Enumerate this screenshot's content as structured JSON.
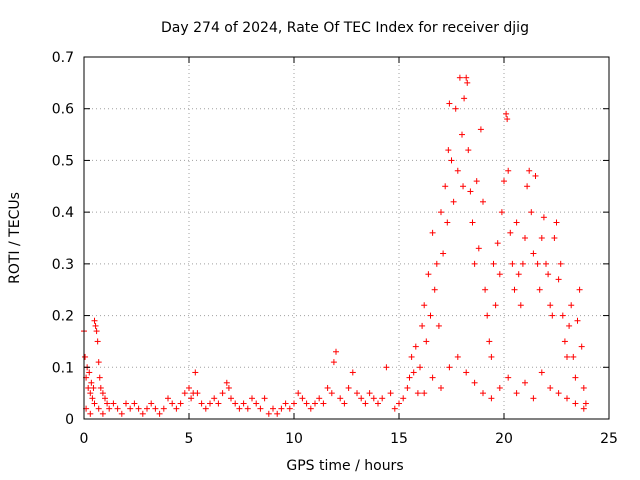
{
  "chart_data": {
    "type": "scatter",
    "title": "Day 274 of 2024, Rate Of TEC Index for receiver djig",
    "xlabel": "GPS time / hours",
    "ylabel": "ROTI / TECUs",
    "xlim": [
      0,
      25
    ],
    "ylim": [
      0,
      0.7
    ],
    "x_ticks": [
      0,
      5,
      10,
      15,
      20,
      25
    ],
    "x_tick_labels": [
      "0",
      "5",
      "10",
      "15",
      "20",
      "25"
    ],
    "y_ticks": [
      0,
      0.1,
      0.2,
      0.3,
      0.4,
      0.5,
      0.6,
      0.7
    ],
    "y_tick_labels": [
      "0",
      "0.1",
      "0.2",
      "0.3",
      "0.4",
      "0.5",
      "0.6",
      "0.7"
    ],
    "grid": true,
    "marker": "+",
    "series": [
      {
        "name": "ROTI",
        "color": "#ff0000",
        "points": [
          [
            0.0,
            0.17
          ],
          [
            0.05,
            0.12
          ],
          [
            0.1,
            0.08
          ],
          [
            0.15,
            0.1
          ],
          [
            0.2,
            0.06
          ],
          [
            0.25,
            0.09
          ],
          [
            0.3,
            0.05
          ],
          [
            0.35,
            0.07
          ],
          [
            0.4,
            0.04
          ],
          [
            0.45,
            0.06
          ],
          [
            0.5,
            0.19
          ],
          [
            0.55,
            0.18
          ],
          [
            0.6,
            0.17
          ],
          [
            0.65,
            0.15
          ],
          [
            0.7,
            0.11
          ],
          [
            0.75,
            0.08
          ],
          [
            0.8,
            0.06
          ],
          [
            0.9,
            0.05
          ],
          [
            1.0,
            0.04
          ],
          [
            1.1,
            0.03
          ],
          [
            0.1,
            0.02
          ],
          [
            0.3,
            0.01
          ],
          [
            0.5,
            0.03
          ],
          [
            0.7,
            0.02
          ],
          [
            0.9,
            0.01
          ],
          [
            1.2,
            0.02
          ],
          [
            1.4,
            0.03
          ],
          [
            1.6,
            0.02
          ],
          [
            1.8,
            0.01
          ],
          [
            2.0,
            0.03
          ],
          [
            2.2,
            0.02
          ],
          [
            2.4,
            0.03
          ],
          [
            2.6,
            0.02
          ],
          [
            2.8,
            0.01
          ],
          [
            3.0,
            0.02
          ],
          [
            3.2,
            0.03
          ],
          [
            3.4,
            0.02
          ],
          [
            3.6,
            0.01
          ],
          [
            3.8,
            0.02
          ],
          [
            4.0,
            0.04
          ],
          [
            4.2,
            0.03
          ],
          [
            4.4,
            0.02
          ],
          [
            4.6,
            0.03
          ],
          [
            4.8,
            0.05
          ],
          [
            5.0,
            0.06
          ],
          [
            5.1,
            0.04
          ],
          [
            5.2,
            0.05
          ],
          [
            5.3,
            0.09
          ],
          [
            5.4,
            0.05
          ],
          [
            5.6,
            0.03
          ],
          [
            5.8,
            0.02
          ],
          [
            6.0,
            0.03
          ],
          [
            6.2,
            0.04
          ],
          [
            6.4,
            0.03
          ],
          [
            6.6,
            0.05
          ],
          [
            6.8,
            0.07
          ],
          [
            6.9,
            0.06
          ],
          [
            7.0,
            0.04
          ],
          [
            7.2,
            0.03
          ],
          [
            7.4,
            0.02
          ],
          [
            7.6,
            0.03
          ],
          [
            7.8,
            0.02
          ],
          [
            8.0,
            0.04
          ],
          [
            8.2,
            0.03
          ],
          [
            8.4,
            0.02
          ],
          [
            8.6,
            0.04
          ],
          [
            8.8,
            0.01
          ],
          [
            9.0,
            0.02
          ],
          [
            9.2,
            0.01
          ],
          [
            9.4,
            0.02
          ],
          [
            9.6,
            0.03
          ],
          [
            9.8,
            0.02
          ],
          [
            10.0,
            0.03
          ],
          [
            10.2,
            0.05
          ],
          [
            10.4,
            0.04
          ],
          [
            10.6,
            0.03
          ],
          [
            10.8,
            0.02
          ],
          [
            11.0,
            0.03
          ],
          [
            11.2,
            0.04
          ],
          [
            11.4,
            0.03
          ],
          [
            11.6,
            0.06
          ],
          [
            11.8,
            0.05
          ],
          [
            11.9,
            0.11
          ],
          [
            12.0,
            0.13
          ],
          [
            12.2,
            0.04
          ],
          [
            12.4,
            0.03
          ],
          [
            12.6,
            0.06
          ],
          [
            12.8,
            0.09
          ],
          [
            13.0,
            0.05
          ],
          [
            13.2,
            0.04
          ],
          [
            13.4,
            0.03
          ],
          [
            13.6,
            0.05
          ],
          [
            13.8,
            0.04
          ],
          [
            14.0,
            0.03
          ],
          [
            14.2,
            0.04
          ],
          [
            14.4,
            0.1
          ],
          [
            14.6,
            0.05
          ],
          [
            14.8,
            0.02
          ],
          [
            15.0,
            0.03
          ],
          [
            15.2,
            0.04
          ],
          [
            15.4,
            0.06
          ],
          [
            15.5,
            0.08
          ],
          [
            15.6,
            0.12
          ],
          [
            15.7,
            0.09
          ],
          [
            15.8,
            0.14
          ],
          [
            15.9,
            0.05
          ],
          [
            16.0,
            0.1
          ],
          [
            16.1,
            0.18
          ],
          [
            16.2,
            0.22
          ],
          [
            16.3,
            0.15
          ],
          [
            16.4,
            0.28
          ],
          [
            16.5,
            0.2
          ],
          [
            16.6,
            0.36
          ],
          [
            16.7,
            0.25
          ],
          [
            16.8,
            0.3
          ],
          [
            16.9,
            0.18
          ],
          [
            17.0,
            0.4
          ],
          [
            17.1,
            0.32
          ],
          [
            17.2,
            0.45
          ],
          [
            17.3,
            0.38
          ],
          [
            17.35,
            0.52
          ],
          [
            17.4,
            0.61
          ],
          [
            17.5,
            0.5
          ],
          [
            17.6,
            0.42
          ],
          [
            17.7,
            0.6
          ],
          [
            17.8,
            0.48
          ],
          [
            17.9,
            0.66
          ],
          [
            18.0,
            0.55
          ],
          [
            18.05,
            0.45
          ],
          [
            18.1,
            0.62
          ],
          [
            18.2,
            0.66
          ],
          [
            18.25,
            0.65
          ],
          [
            18.3,
            0.52
          ],
          [
            18.4,
            0.44
          ],
          [
            18.5,
            0.38
          ],
          [
            18.6,
            0.3
          ],
          [
            18.7,
            0.46
          ],
          [
            18.8,
            0.33
          ],
          [
            18.9,
            0.56
          ],
          [
            19.0,
            0.42
          ],
          [
            19.1,
            0.25
          ],
          [
            19.2,
            0.2
          ],
          [
            19.3,
            0.15
          ],
          [
            19.4,
            0.12
          ],
          [
            19.5,
            0.3
          ],
          [
            19.6,
            0.22
          ],
          [
            19.7,
            0.34
          ],
          [
            19.8,
            0.28
          ],
          [
            19.9,
            0.4
          ],
          [
            20.0,
            0.46
          ],
          [
            20.1,
            0.59
          ],
          [
            20.15,
            0.58
          ],
          [
            20.2,
            0.48
          ],
          [
            20.3,
            0.36
          ],
          [
            20.4,
            0.3
          ],
          [
            20.5,
            0.25
          ],
          [
            20.6,
            0.38
          ],
          [
            20.7,
            0.28
          ],
          [
            20.8,
            0.22
          ],
          [
            20.9,
            0.3
          ],
          [
            21.0,
            0.35
          ],
          [
            21.1,
            0.45
          ],
          [
            21.2,
            0.48
          ],
          [
            21.3,
            0.4
          ],
          [
            21.4,
            0.32
          ],
          [
            21.5,
            0.47
          ],
          [
            21.6,
            0.3
          ],
          [
            21.7,
            0.25
          ],
          [
            21.8,
            0.35
          ],
          [
            21.9,
            0.39
          ],
          [
            22.0,
            0.3
          ],
          [
            22.1,
            0.28
          ],
          [
            22.2,
            0.22
          ],
          [
            22.3,
            0.2
          ],
          [
            22.4,
            0.35
          ],
          [
            22.5,
            0.38
          ],
          [
            22.6,
            0.27
          ],
          [
            22.7,
            0.3
          ],
          [
            22.8,
            0.2
          ],
          [
            22.9,
            0.15
          ],
          [
            23.0,
            0.12
          ],
          [
            23.1,
            0.18
          ],
          [
            23.2,
            0.22
          ],
          [
            23.3,
            0.12
          ],
          [
            23.4,
            0.08
          ],
          [
            23.5,
            0.19
          ],
          [
            23.6,
            0.25
          ],
          [
            23.7,
            0.14
          ],
          [
            23.8,
            0.06
          ],
          [
            23.9,
            0.03
          ],
          [
            16.2,
            0.05
          ],
          [
            16.6,
            0.08
          ],
          [
            17.0,
            0.06
          ],
          [
            17.4,
            0.1
          ],
          [
            17.8,
            0.12
          ],
          [
            18.2,
            0.09
          ],
          [
            18.6,
            0.07
          ],
          [
            19.0,
            0.05
          ],
          [
            19.4,
            0.04
          ],
          [
            19.8,
            0.06
          ],
          [
            20.2,
            0.08
          ],
          [
            20.6,
            0.05
          ],
          [
            21.0,
            0.07
          ],
          [
            21.4,
            0.04
          ],
          [
            21.8,
            0.09
          ],
          [
            22.2,
            0.06
          ],
          [
            22.6,
            0.05
          ],
          [
            23.0,
            0.04
          ],
          [
            23.4,
            0.03
          ],
          [
            23.8,
            0.02
          ]
        ]
      }
    ]
  }
}
